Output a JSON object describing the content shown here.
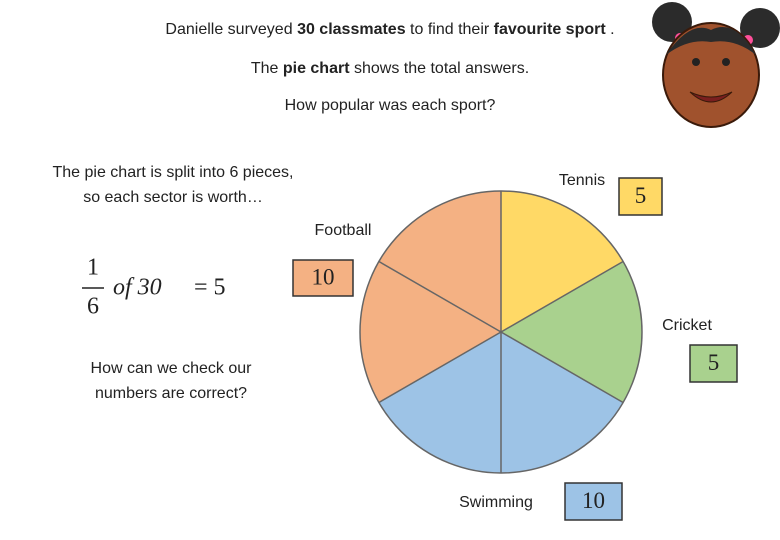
{
  "intro": {
    "line1": [
      "Danielle surveyed",
      "30 classmates",
      "to find their",
      "favourite sport",
      "."
    ],
    "line2": [
      "The",
      "pie chart",
      "shows the total answers."
    ],
    "line3": "How popular was each sport?"
  },
  "split_note": [
    "The pie chart is split into 6 pieces,",
    "so each sector is worth…"
  ],
  "calc": {
    "numerator": "1",
    "denominator": "6",
    "text": "of 30",
    "result": "= 5"
  },
  "check": [
    "How can we check our",
    "numbers are correct?"
  ],
  "chart_data": {
    "type": "pie",
    "categories": [
      "Tennis",
      "Cricket",
      "Swimming",
      "Football"
    ],
    "values": [
      5,
      5,
      10,
      10
    ],
    "colors": [
      "#ffd966",
      "#a9d18e",
      "#9dc3e6",
      "#f4b183"
    ]
  }
}
